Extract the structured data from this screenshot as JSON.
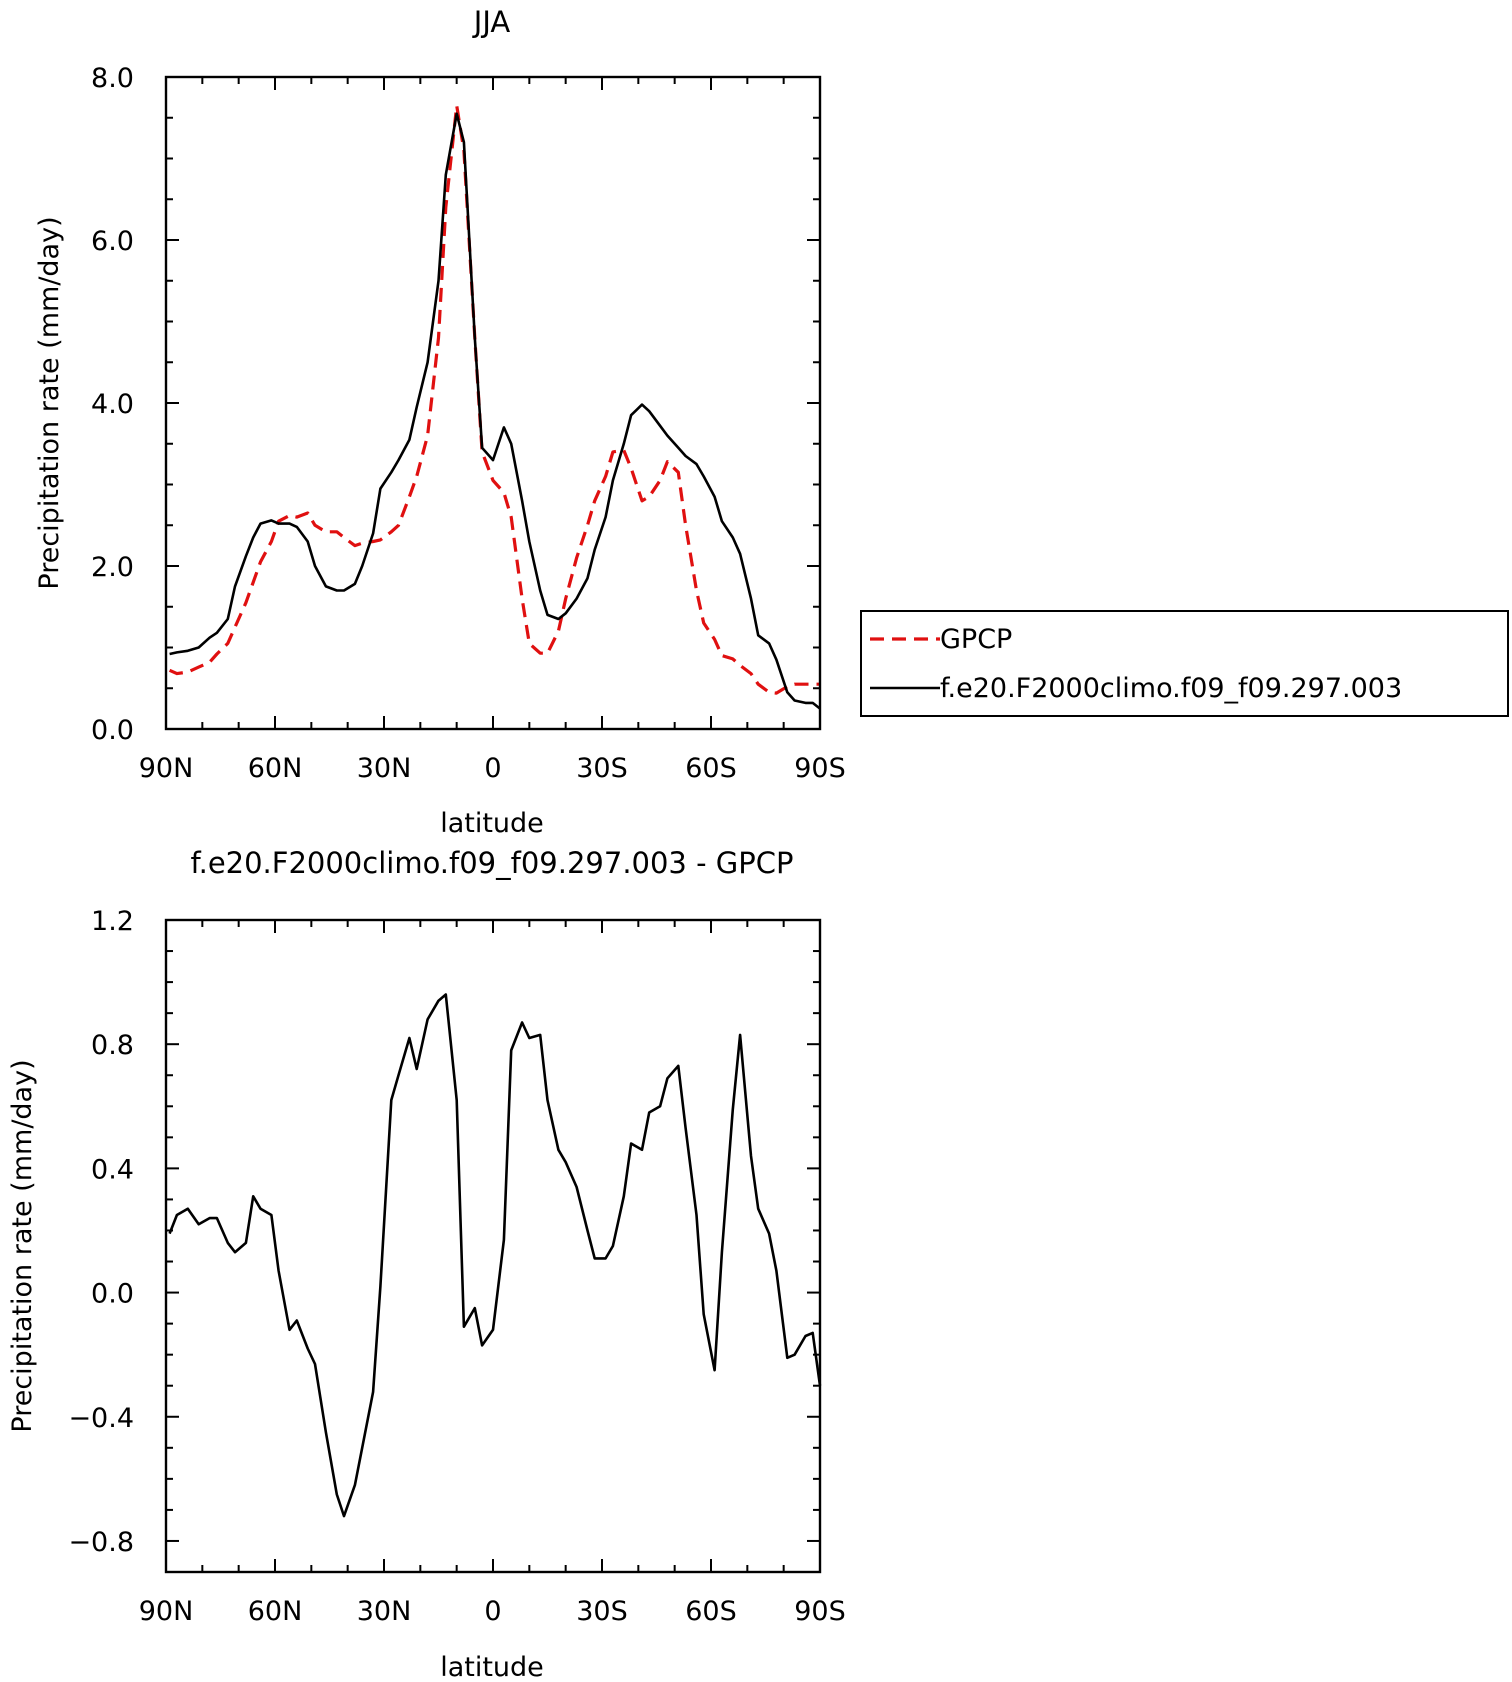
{
  "chart_data": [
    {
      "type": "line",
      "title": "JJA",
      "xlabel": "latitude",
      "ylabel": "Precipitation rate (mm/day)",
      "x_ticks": [
        {
          "value": 90,
          "label": "90N"
        },
        {
          "value": 60,
          "label": "60N"
        },
        {
          "value": 30,
          "label": "30N"
        },
        {
          "value": 0,
          "label": "0"
        },
        {
          "value": -30,
          "label": "30S"
        },
        {
          "value": -60,
          "label": "60S"
        },
        {
          "value": -90,
          "label": "90S"
        }
      ],
      "y_ticks": [
        {
          "value": 0,
          "label": "0.0"
        },
        {
          "value": 2,
          "label": "2.0"
        },
        {
          "value": 4,
          "label": "4.0"
        },
        {
          "value": 6,
          "label": "6.0"
        },
        {
          "value": 8,
          "label": "8.0"
        }
      ],
      "xlim": [
        90,
        -90
      ],
      "ylim": [
        0,
        8
      ],
      "grid": false,
      "legend_position": "right",
      "series": [
        {
          "name": "GPCP",
          "color": "#e01010",
          "dash": "dashed",
          "x": [
            89,
            87,
            84,
            81,
            78,
            76,
            73,
            71,
            68,
            66,
            64,
            61,
            59,
            56,
            54,
            51,
            49,
            46,
            43,
            41,
            38,
            36,
            33,
            31,
            28,
            26,
            23,
            21,
            18,
            15,
            13,
            10,
            8,
            5,
            3,
            0,
            -3,
            -5,
            -8,
            -10,
            -13,
            -15,
            -18,
            -20,
            -23,
            -26,
            -28,
            -31,
            -33,
            -36,
            -38,
            -41,
            -43,
            -46,
            -48,
            -51,
            -53,
            -56,
            -58,
            -61,
            -63,
            -66,
            -68,
            -71,
            -73,
            -76,
            -78,
            -81,
            -83,
            -86,
            -88,
            -90
          ],
          "y": [
            0.72,
            0.68,
            0.7,
            0.76,
            0.82,
            0.92,
            1.05,
            1.25,
            1.55,
            1.8,
            2.05,
            2.3,
            2.55,
            2.62,
            2.6,
            2.65,
            2.5,
            2.42,
            2.42,
            2.35,
            2.25,
            2.28,
            2.3,
            2.32,
            2.42,
            2.5,
            2.85,
            3.1,
            3.6,
            4.8,
            6.4,
            7.65,
            7.1,
            4.8,
            3.4,
            3.05,
            2.9,
            2.6,
            1.6,
            1.05,
            0.93,
            0.93,
            1.2,
            1.6,
            2.1,
            2.5,
            2.8,
            3.1,
            3.4,
            3.42,
            3.2,
            2.8,
            2.85,
            3.05,
            3.28,
            3.15,
            2.5,
            1.7,
            1.3,
            1.1,
            0.9,
            0.86,
            0.78,
            0.68,
            0.55,
            0.45,
            0.44,
            0.52,
            0.55,
            0.55,
            0.55,
            0.55
          ]
        },
        {
          "name": "f.e20.F2000climo.f09_f09.297.003",
          "color": "#000000",
          "dash": "solid",
          "x": [
            89,
            87,
            84,
            81,
            78,
            76,
            73,
            71,
            68,
            66,
            64,
            61,
            59,
            56,
            54,
            51,
            49,
            46,
            43,
            41,
            38,
            36,
            33,
            31,
            28,
            26,
            23,
            21,
            18,
            15,
            13,
            10,
            8,
            5,
            3,
            0,
            -3,
            -5,
            -8,
            -10,
            -13,
            -15,
            -18,
            -20,
            -23,
            -26,
            -28,
            -31,
            -33,
            -36,
            -38,
            -41,
            -43,
            -46,
            -48,
            -51,
            -53,
            -56,
            -58,
            -61,
            -63,
            -66,
            -68,
            -71,
            -73,
            -76,
            -78,
            -81,
            -83,
            -86,
            -88,
            -90
          ],
          "y": [
            0.92,
            0.94,
            0.96,
            1.0,
            1.12,
            1.18,
            1.35,
            1.75,
            2.12,
            2.35,
            2.52,
            2.56,
            2.52,
            2.52,
            2.48,
            2.3,
            2.0,
            1.75,
            1.7,
            1.7,
            1.78,
            2.0,
            2.4,
            2.95,
            3.15,
            3.3,
            3.55,
            3.95,
            4.5,
            5.5,
            6.8,
            7.55,
            7.2,
            4.8,
            3.45,
            3.3,
            3.7,
            3.5,
            2.8,
            2.3,
            1.7,
            1.4,
            1.35,
            1.42,
            1.6,
            1.85,
            2.2,
            2.6,
            3.05,
            3.5,
            3.85,
            3.98,
            3.9,
            3.72,
            3.6,
            3.45,
            3.35,
            3.25,
            3.1,
            2.85,
            2.55,
            2.35,
            2.15,
            1.6,
            1.15,
            1.05,
            0.85,
            0.45,
            0.35,
            0.32,
            0.32,
            0.25
          ]
        }
      ]
    },
    {
      "type": "line",
      "title": "f.e20.F2000climo.f09_f09.297.003 - GPCP",
      "xlabel": "latitude",
      "ylabel": "Precipitation rate (mm/day)",
      "x_ticks": [
        {
          "value": 90,
          "label": "90N"
        },
        {
          "value": 60,
          "label": "60N"
        },
        {
          "value": 30,
          "label": "30N"
        },
        {
          "value": 0,
          "label": "0"
        },
        {
          "value": -30,
          "label": "30S"
        },
        {
          "value": -60,
          "label": "60S"
        },
        {
          "value": -90,
          "label": "90S"
        }
      ],
      "y_ticks": [
        {
          "value": -0.8,
          "label": "−0.8"
        },
        {
          "value": -0.4,
          "label": "−0.4"
        },
        {
          "value": 0.0,
          "label": "0.0"
        },
        {
          "value": 0.4,
          "label": "0.4"
        },
        {
          "value": 0.8,
          "label": "0.8"
        },
        {
          "value": 1.2,
          "label": "1.2"
        }
      ],
      "xlim": [
        90,
        -90
      ],
      "ylim": [
        -0.9,
        1.2
      ],
      "grid": false,
      "series": [
        {
          "color": "#000000",
          "dash": "solid",
          "x": [
            89,
            87,
            84,
            81,
            78,
            76,
            73,
            71,
            68,
            66,
            64,
            61,
            59,
            56,
            54,
            51,
            49,
            46,
            43,
            41,
            38,
            36,
            33,
            31,
            28,
            26,
            23,
            21,
            18,
            15,
            13,
            10,
            8,
            5,
            3,
            0,
            -3,
            -5,
            -8,
            -10,
            -13,
            -15,
            -18,
            -20,
            -23,
            -26,
            -28,
            -31,
            -33,
            -36,
            -38,
            -41,
            -43,
            -46,
            -48,
            -51,
            -53,
            -56,
            -58,
            -61,
            -63,
            -66,
            -68,
            -71,
            -73,
            -76,
            -78,
            -81,
            -83,
            -86,
            -88,
            -90
          ],
          "y": [
            0.19,
            0.25,
            0.27,
            0.22,
            0.24,
            0.24,
            0.16,
            0.13,
            0.16,
            0.31,
            0.27,
            0.25,
            0.07,
            -0.12,
            -0.09,
            -0.18,
            -0.23,
            -0.45,
            -0.65,
            -0.72,
            -0.62,
            -0.5,
            -0.32,
            0.02,
            0.62,
            0.7,
            0.82,
            0.72,
            0.88,
            0.94,
            0.96,
            0.62,
            -0.11,
            -0.05,
            -0.17,
            -0.12,
            0.17,
            0.78,
            0.87,
            0.82,
            0.83,
            0.62,
            0.46,
            0.42,
            0.34,
            0.2,
            0.11,
            0.11,
            0.15,
            0.31,
            0.48,
            0.46,
            0.58,
            0.6,
            0.69,
            0.73,
            0.53,
            0.25,
            -0.07,
            -0.25,
            0.13,
            0.59,
            0.83,
            0.44,
            0.27,
            0.19,
            0.07,
            -0.21,
            -0.2,
            -0.14,
            -0.13,
            -0.3
          ]
        }
      ]
    }
  ]
}
